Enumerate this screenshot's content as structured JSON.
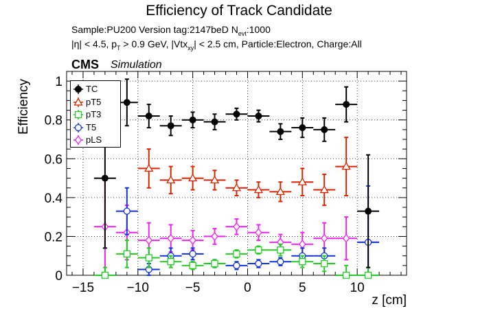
{
  "page": {
    "title": "Efficiency of Track Candidate",
    "info_line1": "Sample:PU200   Version tag:2147beD  N",
    "info_line1_sub": "evt",
    "info_line1_end": ":1000",
    "info_line2_a": "|η| < 4.5, p",
    "info_line2_sub1": "T",
    "info_line2_b": " > 0.9 GeV, |Vtx",
    "info_line2_sub2": "xy",
    "info_line2_c": "| < 2.5 cm, Particle:Electron, Charge:All",
    "cms_label": "CMS",
    "sim_label": "Simulation"
  },
  "chart_data": {
    "type": "scatter",
    "xlabel": "z [cm]",
    "ylabel": "Efficiency",
    "xlim": [
      -16.5,
      14.5
    ],
    "ylim": [
      0,
      1.05
    ],
    "xticks": [
      -15,
      -10,
      -5,
      0,
      5,
      10
    ],
    "yticks": [
      0,
      0.2,
      0.4,
      0.6,
      0.8,
      1
    ],
    "grid": true,
    "legend_position": "top-left",
    "x_bin_halfwidth": 1.0,
    "series": [
      {
        "name": "TC",
        "color": "#000000",
        "marker": "filled-circle",
        "x": [
          -13,
          -11,
          -9,
          -7,
          -5,
          -3,
          -1,
          1,
          3,
          5,
          7,
          9,
          11
        ],
        "y": [
          0.5,
          0.89,
          0.82,
          0.77,
          0.8,
          0.79,
          0.83,
          0.82,
          0.74,
          0.76,
          0.75,
          0.88,
          0.33
        ],
        "err": [
          0.36,
          0.12,
          0.06,
          0.05,
          0.04,
          0.04,
          0.03,
          0.03,
          0.04,
          0.05,
          0.06,
          0.09,
          0.29
        ]
      },
      {
        "name": "pT5",
        "color": "#dd2200",
        "marker": "open-triangle",
        "x": [
          -9,
          -7,
          -5,
          -3,
          -1,
          1,
          3,
          5,
          7,
          9
        ],
        "y": [
          0.55,
          0.49,
          0.5,
          0.49,
          0.45,
          0.44,
          0.43,
          0.48,
          0.44,
          0.56
        ],
        "err": [
          0.1,
          0.07,
          0.06,
          0.05,
          0.04,
          0.04,
          0.05,
          0.07,
          0.08,
          0.15
        ]
      },
      {
        "name": "pT3",
        "color": "#22cc22",
        "marker": "open-square",
        "x": [
          -13,
          -11,
          -9,
          -7,
          -5,
          -3,
          -1,
          1,
          3,
          5,
          7,
          9,
          11
        ],
        "y": [
          0.0,
          0.11,
          0.09,
          0.07,
          0.05,
          0.06,
          0.11,
          0.13,
          0.13,
          0.07,
          0.06,
          0.0,
          0.0
        ],
        "err": [
          0.04,
          0.07,
          0.05,
          0.03,
          0.02,
          0.02,
          0.02,
          0.02,
          0.03,
          0.03,
          0.04,
          0.05,
          0.04
        ]
      },
      {
        "name": "T5",
        "color": "#1133dd",
        "marker": "open-circle",
        "x": [
          -11,
          -9,
          -7,
          -5,
          -3,
          -1,
          1,
          3,
          5,
          7,
          11
        ],
        "y": [
          0.33,
          0.03,
          0.1,
          0.11,
          0.06,
          0.05,
          0.06,
          0.07,
          0.1,
          0.1,
          0.17
        ],
        "err": [
          0.12,
          0.03,
          0.04,
          0.03,
          0.02,
          0.02,
          0.02,
          0.02,
          0.04,
          0.04,
          0.29
        ]
      },
      {
        "name": "pLS",
        "color": "#ee22ee",
        "marker": "open-diamond",
        "x": [
          -13,
          -11,
          -9,
          -7,
          -5,
          -3,
          -1,
          1,
          3,
          5,
          7,
          9,
          11
        ],
        "y": [
          0.25,
          0.22,
          0.18,
          0.19,
          0.18,
          0.2,
          0.25,
          0.22,
          0.17,
          0.16,
          0.19,
          0.19,
          0.17
        ],
        "err": [
          0.25,
          0.14,
          0.09,
          0.07,
          0.05,
          0.04,
          0.04,
          0.04,
          0.04,
          0.06,
          0.08,
          0.11,
          0.17
        ]
      }
    ]
  }
}
